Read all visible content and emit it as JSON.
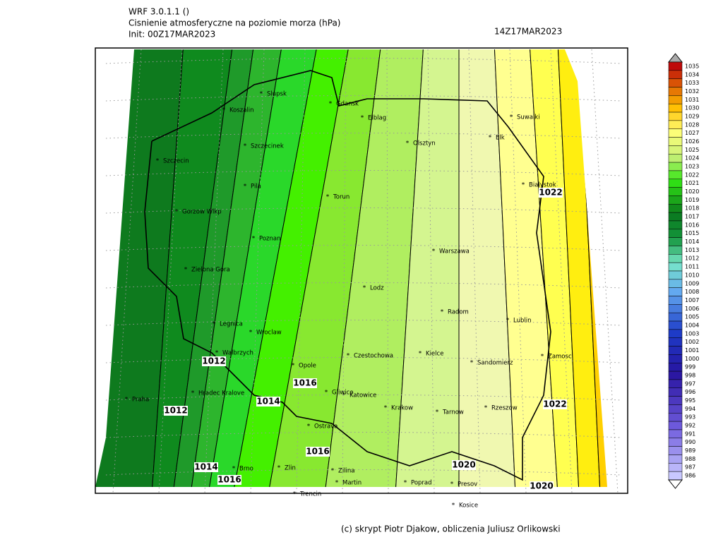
{
  "header": {
    "model": "WRF 3.0.1.1 ()",
    "field": "Cisnienie atmosferyczne na poziomie morza (hPa)",
    "init": "Init: 00Z17MAR2023",
    "valid": "14Z17MAR2023"
  },
  "cities": [
    "Slupsk",
    "Koszalin",
    "Gdansk",
    "Elblag",
    "Szczecinek",
    "Szczecin",
    "Olsztyn",
    "Suwalki",
    "Elk",
    "Pila",
    "Bialystok",
    "Torun",
    "Gorzow Wlkp",
    "Poznan",
    "Warszawa",
    "Zielona Gora",
    "Lodz",
    "Radom",
    "Lublin",
    "Legnica",
    "Wroclaw",
    "Walbrzych",
    "Kielce",
    "Czestochowa",
    "Zamosc",
    "Sandomierz",
    "Opole",
    "Hradec Kralove",
    "Gliwice",
    "Katowice",
    "Praha",
    "Krakow",
    "Tarnow",
    "Rzeszow",
    "Ostrava",
    "Brno",
    "Zlin",
    "Zilina",
    "Martin",
    "Poprad",
    "Presov",
    "Trencin",
    "Kosice"
  ],
  "contour_labels": [
    1012,
    1012,
    1014,
    1016,
    1016,
    1014,
    1016,
    1020,
    1020,
    1022,
    1022
  ],
  "colorbar": {
    "labels": [
      1035,
      1034,
      1033,
      1032,
      1031,
      1030,
      1029,
      1028,
      1027,
      1026,
      1025,
      1024,
      1023,
      1022,
      1021,
      1020,
      1019,
      1018,
      1017,
      1016,
      1015,
      1014,
      1013,
      1012,
      1011,
      1010,
      1009,
      1008,
      1007,
      1006,
      1005,
      1004,
      1003,
      1002,
      1001,
      1000,
      999,
      998,
      997,
      996,
      995,
      994,
      993,
      992,
      991,
      990,
      989,
      988,
      987,
      986
    ]
  },
  "credit": "(c) skrypt Piotr Djakow, obliczenia Juliusz Orlikowski"
}
